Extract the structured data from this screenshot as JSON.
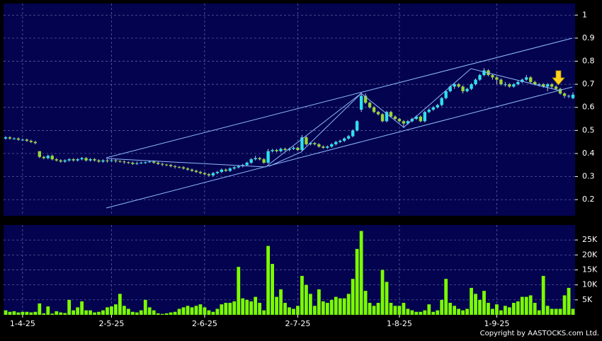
{
  "chart_data": [
    {
      "type": "candlestick",
      "up_color": "#2ee0ee",
      "down_color": "#9ad43a",
      "grid": true,
      "ylim": [
        0.13,
        1.05
      ],
      "yticks": [
        0.2,
        0.3,
        0.4,
        0.5,
        0.6,
        0.7,
        0.8,
        0.9,
        1
      ],
      "candles": [
        [
          0.465,
          0.475,
          0.46,
          0.47
        ],
        [
          0.47,
          0.475,
          0.46,
          0.465
        ],
        [
          0.465,
          0.47,
          0.46,
          0.465
        ],
        [
          0.465,
          0.47,
          0.455,
          0.46
        ],
        [
          0.46,
          0.465,
          0.455,
          0.46
        ],
        [
          0.46,
          0.465,
          0.45,
          0.455
        ],
        [
          0.455,
          0.46,
          0.445,
          0.45
        ],
        [
          0.45,
          0.455,
          0.44,
          0.445
        ],
        [
          0.41,
          0.41,
          0.38,
          0.385
        ],
        [
          0.385,
          0.39,
          0.375,
          0.38
        ],
        [
          0.38,
          0.395,
          0.375,
          0.39
        ],
        [
          0.39,
          0.395,
          0.37,
          0.375
        ],
        [
          0.375,
          0.38,
          0.365,
          0.37
        ],
        [
          0.37,
          0.375,
          0.36,
          0.365
        ],
        [
          0.365,
          0.375,
          0.36,
          0.37
        ],
        [
          0.37,
          0.38,
          0.365,
          0.375
        ],
        [
          0.375,
          0.38,
          0.365,
          0.37
        ],
        [
          0.37,
          0.38,
          0.365,
          0.375
        ],
        [
          0.375,
          0.385,
          0.37,
          0.38
        ],
        [
          0.38,
          0.385,
          0.365,
          0.37
        ],
        [
          0.37,
          0.38,
          0.365,
          0.375
        ],
        [
          0.375,
          0.38,
          0.365,
          0.37
        ],
        [
          0.37,
          0.375,
          0.36,
          0.365
        ],
        [
          0.365,
          0.375,
          0.36,
          0.37
        ],
        [
          0.37,
          0.375,
          0.36,
          0.368
        ],
        [
          0.368,
          0.375,
          0.365,
          0.37
        ],
        [
          0.37,
          0.375,
          0.36,
          0.368
        ],
        [
          0.368,
          0.37,
          0.36,
          0.365
        ],
        [
          0.365,
          0.37,
          0.355,
          0.362
        ],
        [
          0.362,
          0.365,
          0.355,
          0.36
        ],
        [
          0.36,
          0.365,
          0.35,
          0.355
        ],
        [
          0.355,
          0.365,
          0.35,
          0.358
        ],
        [
          0.358,
          0.365,
          0.355,
          0.36
        ],
        [
          0.36,
          0.365,
          0.355,
          0.362
        ],
        [
          0.362,
          0.37,
          0.36,
          0.365
        ],
        [
          0.365,
          0.37,
          0.355,
          0.36
        ],
        [
          0.36,
          0.365,
          0.35,
          0.355
        ],
        [
          0.355,
          0.36,
          0.345,
          0.352
        ],
        [
          0.352,
          0.355,
          0.345,
          0.35
        ],
        [
          0.35,
          0.355,
          0.34,
          0.345
        ],
        [
          0.345,
          0.35,
          0.335,
          0.342
        ],
        [
          0.342,
          0.345,
          0.335,
          0.34
        ],
        [
          0.34,
          0.345,
          0.33,
          0.335
        ],
        [
          0.335,
          0.34,
          0.325,
          0.33
        ],
        [
          0.33,
          0.335,
          0.32,
          0.325
        ],
        [
          0.325,
          0.33,
          0.315,
          0.32
        ],
        [
          0.32,
          0.325,
          0.31,
          0.315
        ],
        [
          0.315,
          0.32,
          0.305,
          0.31
        ],
        [
          0.31,
          0.315,
          0.3,
          0.305
        ],
        [
          0.305,
          0.32,
          0.3,
          0.315
        ],
        [
          0.315,
          0.325,
          0.31,
          0.32
        ],
        [
          0.32,
          0.335,
          0.315,
          0.33
        ],
        [
          0.33,
          0.335,
          0.32,
          0.325
        ],
        [
          0.325,
          0.34,
          0.32,
          0.335
        ],
        [
          0.335,
          0.345,
          0.33,
          0.34
        ],
        [
          0.34,
          0.35,
          0.335,
          0.345
        ],
        [
          0.345,
          0.355,
          0.34,
          0.35
        ],
        [
          0.35,
          0.365,
          0.345,
          0.36
        ],
        [
          0.36,
          0.38,
          0.355,
          0.375
        ],
        [
          0.375,
          0.39,
          0.37,
          0.38
        ],
        [
          0.38,
          0.385,
          0.37,
          0.375
        ],
        [
          0.375,
          0.38,
          0.355,
          0.36
        ],
        [
          0.36,
          0.42,
          0.355,
          0.41
        ],
        [
          0.41,
          0.42,
          0.405,
          0.415
        ],
        [
          0.415,
          0.42,
          0.405,
          0.41
        ],
        [
          0.41,
          0.425,
          0.405,
          0.42
        ],
        [
          0.42,
          0.425,
          0.41,
          0.415
        ],
        [
          0.415,
          0.425,
          0.41,
          0.42
        ],
        [
          0.42,
          0.43,
          0.415,
          0.425
        ],
        [
          0.425,
          0.43,
          0.41,
          0.415
        ],
        [
          0.415,
          0.48,
          0.41,
          0.47
        ],
        [
          0.47,
          0.475,
          0.435,
          0.44
        ],
        [
          0.44,
          0.45,
          0.435,
          0.445
        ],
        [
          0.445,
          0.45,
          0.435,
          0.44
        ],
        [
          0.44,
          0.445,
          0.425,
          0.43
        ],
        [
          0.43,
          0.435,
          0.42,
          0.425
        ],
        [
          0.425,
          0.435,
          0.42,
          0.43
        ],
        [
          0.43,
          0.445,
          0.425,
          0.44
        ],
        [
          0.44,
          0.455,
          0.435,
          0.45
        ],
        [
          0.45,
          0.46,
          0.445,
          0.455
        ],
        [
          0.455,
          0.47,
          0.45,
          0.465
        ],
        [
          0.465,
          0.48,
          0.46,
          0.475
        ],
        [
          0.475,
          0.505,
          0.47,
          0.5
        ],
        [
          0.5,
          0.545,
          0.495,
          0.54
        ],
        [
          0.59,
          0.665,
          0.58,
          0.65
        ],
        [
          0.65,
          0.66,
          0.615,
          0.62
        ],
        [
          0.62,
          0.625,
          0.595,
          0.6
        ],
        [
          0.6,
          0.605,
          0.575,
          0.58
        ],
        [
          0.58,
          0.585,
          0.565,
          0.57
        ],
        [
          0.57,
          0.575,
          0.535,
          0.54
        ],
        [
          0.54,
          0.585,
          0.535,
          0.58
        ],
        [
          0.58,
          0.585,
          0.555,
          0.56
        ],
        [
          0.56,
          0.565,
          0.545,
          0.55
        ],
        [
          0.55,
          0.555,
          0.535,
          0.54
        ],
        [
          0.54,
          0.545,
          0.51,
          0.53
        ],
        [
          0.53,
          0.545,
          0.525,
          0.54
        ],
        [
          0.54,
          0.555,
          0.535,
          0.55
        ],
        [
          0.55,
          0.565,
          0.545,
          0.56
        ],
        [
          0.56,
          0.565,
          0.535,
          0.54
        ],
        [
          0.54,
          0.585,
          0.535,
          0.58
        ],
        [
          0.58,
          0.595,
          0.575,
          0.59
        ],
        [
          0.59,
          0.605,
          0.585,
          0.6
        ],
        [
          0.6,
          0.615,
          0.595,
          0.61
        ],
        [
          0.61,
          0.645,
          0.605,
          0.64
        ],
        [
          0.64,
          0.675,
          0.635,
          0.67
        ],
        [
          0.67,
          0.695,
          0.665,
          0.69
        ],
        [
          0.69,
          0.705,
          0.68,
          0.7
        ],
        [
          0.7,
          0.705,
          0.685,
          0.69
        ],
        [
          0.69,
          0.695,
          0.66,
          0.67
        ],
        [
          0.67,
          0.685,
          0.665,
          0.68
        ],
        [
          0.68,
          0.705,
          0.675,
          0.7
        ],
        [
          0.7,
          0.725,
          0.695,
          0.72
        ],
        [
          0.72,
          0.745,
          0.715,
          0.74
        ],
        [
          0.74,
          0.77,
          0.735,
          0.76
        ],
        [
          0.76,
          0.765,
          0.735,
          0.74
        ],
        [
          0.74,
          0.745,
          0.72,
          0.73
        ],
        [
          0.73,
          0.735,
          0.7,
          0.72
        ],
        [
          0.72,
          0.725,
          0.695,
          0.7
        ],
        [
          0.7,
          0.71,
          0.69,
          0.7
        ],
        [
          0.7,
          0.705,
          0.685,
          0.69
        ],
        [
          0.69,
          0.705,
          0.685,
          0.7
        ],
        [
          0.7,
          0.715,
          0.695,
          0.71
        ],
        [
          0.71,
          0.725,
          0.705,
          0.72
        ],
        [
          0.72,
          0.74,
          0.715,
          0.73
        ],
        [
          0.73,
          0.735,
          0.705,
          0.71
        ],
        [
          0.71,
          0.715,
          0.695,
          0.7
        ],
        [
          0.7,
          0.705,
          0.69,
          0.7
        ],
        [
          0.7,
          0.705,
          0.685,
          0.69
        ],
        [
          0.69,
          0.705,
          0.67,
          0.7
        ],
        [
          0.7,
          0.705,
          0.68,
          0.69
        ],
        [
          0.69,
          0.695,
          0.675,
          0.68
        ],
        [
          0.68,
          0.685,
          0.655,
          0.66
        ],
        [
          0.66,
          0.665,
          0.64,
          0.65
        ],
        [
          0.65,
          0.655,
          0.64,
          0.65
        ],
        [
          0.64,
          0.665,
          0.635,
          0.655
        ]
      ]
    },
    {
      "type": "bar",
      "color": "#7cfc00",
      "grid": true,
      "ylim": [
        0,
        30000
      ],
      "yticks": [
        {
          "value": 5000,
          "label": "5K"
        },
        {
          "value": 10000,
          "label": "10K"
        },
        {
          "value": 15000,
          "label": "15K"
        },
        {
          "value": 20000,
          "label": "20K"
        },
        {
          "value": 25000,
          "label": "25K"
        }
      ],
      "xlim": [
        -0.5,
        134.5
      ],
      "xticks": [
        {
          "value": 4,
          "label": "1-4-25"
        },
        {
          "value": 25,
          "label": "2-5-25"
        },
        {
          "value": 47,
          "label": "2-6-25"
        },
        {
          "value": 69,
          "label": "2-7-25"
        },
        {
          "value": 93,
          "label": "1-8-25"
        },
        {
          "value": 116,
          "label": "1-9-25"
        }
      ],
      "values": [
        1500,
        1000,
        1200,
        800,
        1000,
        1000,
        800,
        1000,
        3800,
        500,
        2800,
        400,
        1200,
        800,
        600,
        5000,
        1500,
        2500,
        4500,
        1500,
        1500,
        800,
        1000,
        1500,
        2500,
        2800,
        3500,
        7000,
        3000,
        2000,
        1000,
        800,
        1500,
        5000,
        2500,
        1500,
        500,
        300,
        500,
        800,
        1000,
        2000,
        2500,
        3000,
        2500,
        3000,
        3500,
        2500,
        1500,
        1000,
        2000,
        3500,
        4000,
        4000,
        4500,
        16000,
        5500,
        5000,
        4500,
        6000,
        4000,
        1500,
        23000,
        17000,
        6000,
        8500,
        4000,
        2500,
        2000,
        3000,
        13000,
        10000,
        7000,
        3000,
        8500,
        4500,
        4000,
        5000,
        6000,
        5500,
        5500,
        7000,
        12000,
        22000,
        28000,
        8000,
        4000,
        3000,
        4000,
        15000,
        11000,
        4000,
        3000,
        3000,
        4000,
        2000,
        1500,
        1000,
        1000,
        1500,
        3500,
        1000,
        1500,
        5000,
        12000,
        4000,
        3000,
        2000,
        1500,
        2000,
        9000,
        7000,
        5000,
        8000,
        4000,
        2000,
        3500,
        1500,
        3000,
        2500,
        4000,
        4500,
        6000,
        6000,
        6500,
        4000,
        1500,
        13000,
        3000,
        2000,
        2000,
        2000,
        6500,
        9000,
        2000
      ]
    }
  ],
  "footer": {
    "copyright": "Copyright by AASTOCKS.com Ltd."
  }
}
